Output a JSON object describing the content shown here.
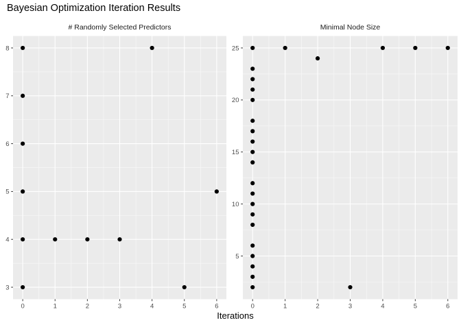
{
  "title": "Bayesian Optimization Iteration Results",
  "xlabel": "Iterations",
  "colors": {
    "background": "#FFFFFF",
    "panel_bg": "#EBEBEB",
    "strip_bg": "#D9D9D9",
    "grid_major": "#FFFFFF",
    "grid_minor": "#F7F7F7",
    "point": "#000000",
    "axis_text": "#4D4D4D",
    "strip_text": "#1A1A1A",
    "tick_mark": "#333333",
    "title_text": "#000000"
  },
  "chart_data": [
    {
      "type": "scatter",
      "facet": "# Randomly Selected Predictors",
      "xlabel": "Iterations",
      "ylabel": "",
      "x_ticks": [
        0,
        1,
        2,
        3,
        4,
        5,
        6
      ],
      "y_ticks": [
        3,
        4,
        5,
        6,
        7,
        8
      ],
      "xlim": [
        -0.3,
        6.3
      ],
      "ylim": [
        2.75,
        8.25
      ],
      "grid": true,
      "legend": "none",
      "points": [
        [
          0,
          8
        ],
        [
          0,
          7
        ],
        [
          0,
          6
        ],
        [
          0,
          5
        ],
        [
          0,
          4
        ],
        [
          0,
          3
        ],
        [
          1,
          4
        ],
        [
          2,
          4
        ],
        [
          3,
          4
        ],
        [
          4,
          8
        ],
        [
          5,
          3
        ],
        [
          6,
          5
        ]
      ]
    },
    {
      "type": "scatter",
      "facet": "Minimal Node Size",
      "xlabel": "Iterations",
      "ylabel": "",
      "x_ticks": [
        0,
        1,
        2,
        3,
        4,
        5,
        6
      ],
      "y_ticks": [
        5,
        10,
        15,
        20,
        25
      ],
      "xlim": [
        -0.3,
        6.3
      ],
      "ylim": [
        0.85,
        26.15
      ],
      "grid": true,
      "legend": "none",
      "points": [
        [
          0,
          25
        ],
        [
          0,
          23
        ],
        [
          0,
          22
        ],
        [
          0,
          21
        ],
        [
          0,
          20
        ],
        [
          0,
          18
        ],
        [
          0,
          17
        ],
        [
          0,
          16
        ],
        [
          0,
          15
        ],
        [
          0,
          14
        ],
        [
          0,
          12
        ],
        [
          0,
          11
        ],
        [
          0,
          10
        ],
        [
          0,
          9
        ],
        [
          0,
          8
        ],
        [
          0,
          6
        ],
        [
          0,
          5
        ],
        [
          0,
          4
        ],
        [
          0,
          3
        ],
        [
          0,
          2
        ],
        [
          1,
          25
        ],
        [
          2,
          24
        ],
        [
          3,
          2
        ],
        [
          4,
          25
        ],
        [
          5,
          25
        ],
        [
          6,
          25
        ]
      ]
    }
  ]
}
